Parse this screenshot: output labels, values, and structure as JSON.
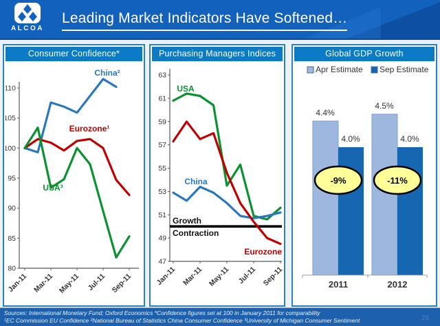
{
  "header": {
    "brand": "ALCOA",
    "title": "Leading Market Indicators Have Softened…"
  },
  "footer": {
    "line1": "Sources: International Monetary Fund; Oxford Economics *Confidence figures set at 100 in January 2011 for comparability",
    "line2": "¹EC Commission EU Confidence ²National Bureau of Statistics China Consumer Confidence ³University of Michigan Consumer Sentiment",
    "page": "26"
  },
  "colors": {
    "banner": "#1261bd",
    "panel_header": "#0d7ac6",
    "panel_border": "#2b7fc3",
    "china": "#2878c0",
    "eurozone": "#c00000",
    "usa": "#0a9130",
    "apr_bar": "#9db7de",
    "sep_bar": "#1666b2",
    "oval_fill": "#ffff99",
    "axis": "#595959",
    "tick_text": "#333333"
  },
  "chart_data": [
    {
      "type": "line",
      "title": "Consumer Confidence*",
      "x": [
        "Jan-11",
        "Feb-11",
        "Mar-11",
        "Apr-11",
        "May-11",
        "Jun-11",
        "Jul-11",
        "Aug-11",
        "Sep-11"
      ],
      "x_tick_labels": [
        "Jan-11",
        "Mar-11",
        "May-11",
        "Jul-11",
        "Sep-11"
      ],
      "ylim": [
        80,
        110
      ],
      "yticks": [
        80,
        85,
        90,
        95,
        100,
        105,
        110
      ],
      "grid": false,
      "series": [
        {
          "name": "China²",
          "color_key": "china",
          "values": [
            100,
            99.3,
            107.6,
            106.9,
            105.9,
            108.7,
            111.5,
            110.2,
            null
          ]
        },
        {
          "name": "Eurozone¹",
          "color_key": "eurozone",
          "values": [
            100,
            101.5,
            100.9,
            99.6,
            101.2,
            101.5,
            100.0,
            94.7,
            92.2
          ]
        },
        {
          "name": "USA³",
          "color_key": "usa",
          "values": [
            100,
            103.4,
            93.4,
            94.8,
            100.0,
            97.3,
            89.5,
            81.8,
            85.3
          ]
        }
      ]
    },
    {
      "type": "line",
      "title": "Purchasing Managers Indices",
      "x": [
        "Jan-11",
        "Feb-11",
        "Mar-11",
        "Apr-11",
        "May-11",
        "Jun-11",
        "Jul-11",
        "Aug-11",
        "Sep-11"
      ],
      "x_tick_labels": [
        "Jan-11",
        "Mar-11",
        "May-11",
        "Jul-11",
        "Sep-11"
      ],
      "ylim": [
        47,
        63
      ],
      "yticks": [
        47,
        49,
        51,
        53,
        55,
        57,
        59,
        61,
        63
      ],
      "grid": false,
      "reference_line": {
        "value": 50,
        "label_above": "Growth",
        "label_below": "Contraction"
      },
      "series": [
        {
          "name": "USA",
          "color_key": "usa",
          "values": [
            60.8,
            61.4,
            61.2,
            60.4,
            53.5,
            55.3,
            50.9,
            50.6,
            51.6
          ]
        },
        {
          "name": "China",
          "color_key": "china",
          "values": [
            52.9,
            52.2,
            53.4,
            52.9,
            52.0,
            50.9,
            50.7,
            50.9,
            51.2
          ]
        },
        {
          "name": "Eurozone",
          "color_key": "eurozone",
          "values": [
            57.3,
            59.0,
            57.5,
            58.0,
            54.6,
            52.0,
            50.4,
            49.0,
            48.5
          ]
        }
      ]
    },
    {
      "type": "bar",
      "title": "Global GDP Growth",
      "categories": [
        "2011",
        "2012"
      ],
      "legend_position": "top",
      "series": [
        {
          "name": "Apr Estimate",
          "color_key": "apr_bar",
          "values": [
            4.4,
            4.5
          ],
          "labels": [
            "4.4%",
            "4.5%"
          ]
        },
        {
          "name": "Sep Estimate",
          "color_key": "sep_bar",
          "values": [
            4.0,
            4.0
          ],
          "labels": [
            "4.0%",
            "4.0%"
          ]
        }
      ],
      "annotations": [
        "-9%",
        "-11%"
      ]
    }
  ]
}
